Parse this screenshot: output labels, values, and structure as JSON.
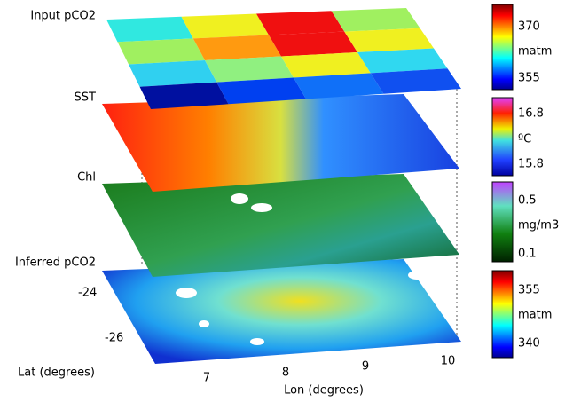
{
  "layers": [
    {
      "label": "Input pCO2",
      "colorbar": {
        "ticks": [
          "370",
          "matm",
          "355"
        ]
      }
    },
    {
      "label": "SST",
      "colorbar": {
        "ticks": [
          "16.8",
          "ºC",
          "15.8"
        ]
      }
    },
    {
      "label": "Chl",
      "colorbar": {
        "ticks": [
          "0.5",
          "mg/m3",
          "0.1"
        ]
      }
    },
    {
      "label": "Inferred pCO2",
      "colorbar": {
        "ticks": [
          "355",
          "matm",
          "340"
        ]
      }
    }
  ],
  "axes": {
    "lat_label": "Lat (degrees)",
    "lat_ticks": [
      "-24",
      "-26"
    ],
    "lon_label": "Lon (degrees)",
    "lon_ticks": [
      "7",
      "8",
      "9",
      "10"
    ]
  }
}
